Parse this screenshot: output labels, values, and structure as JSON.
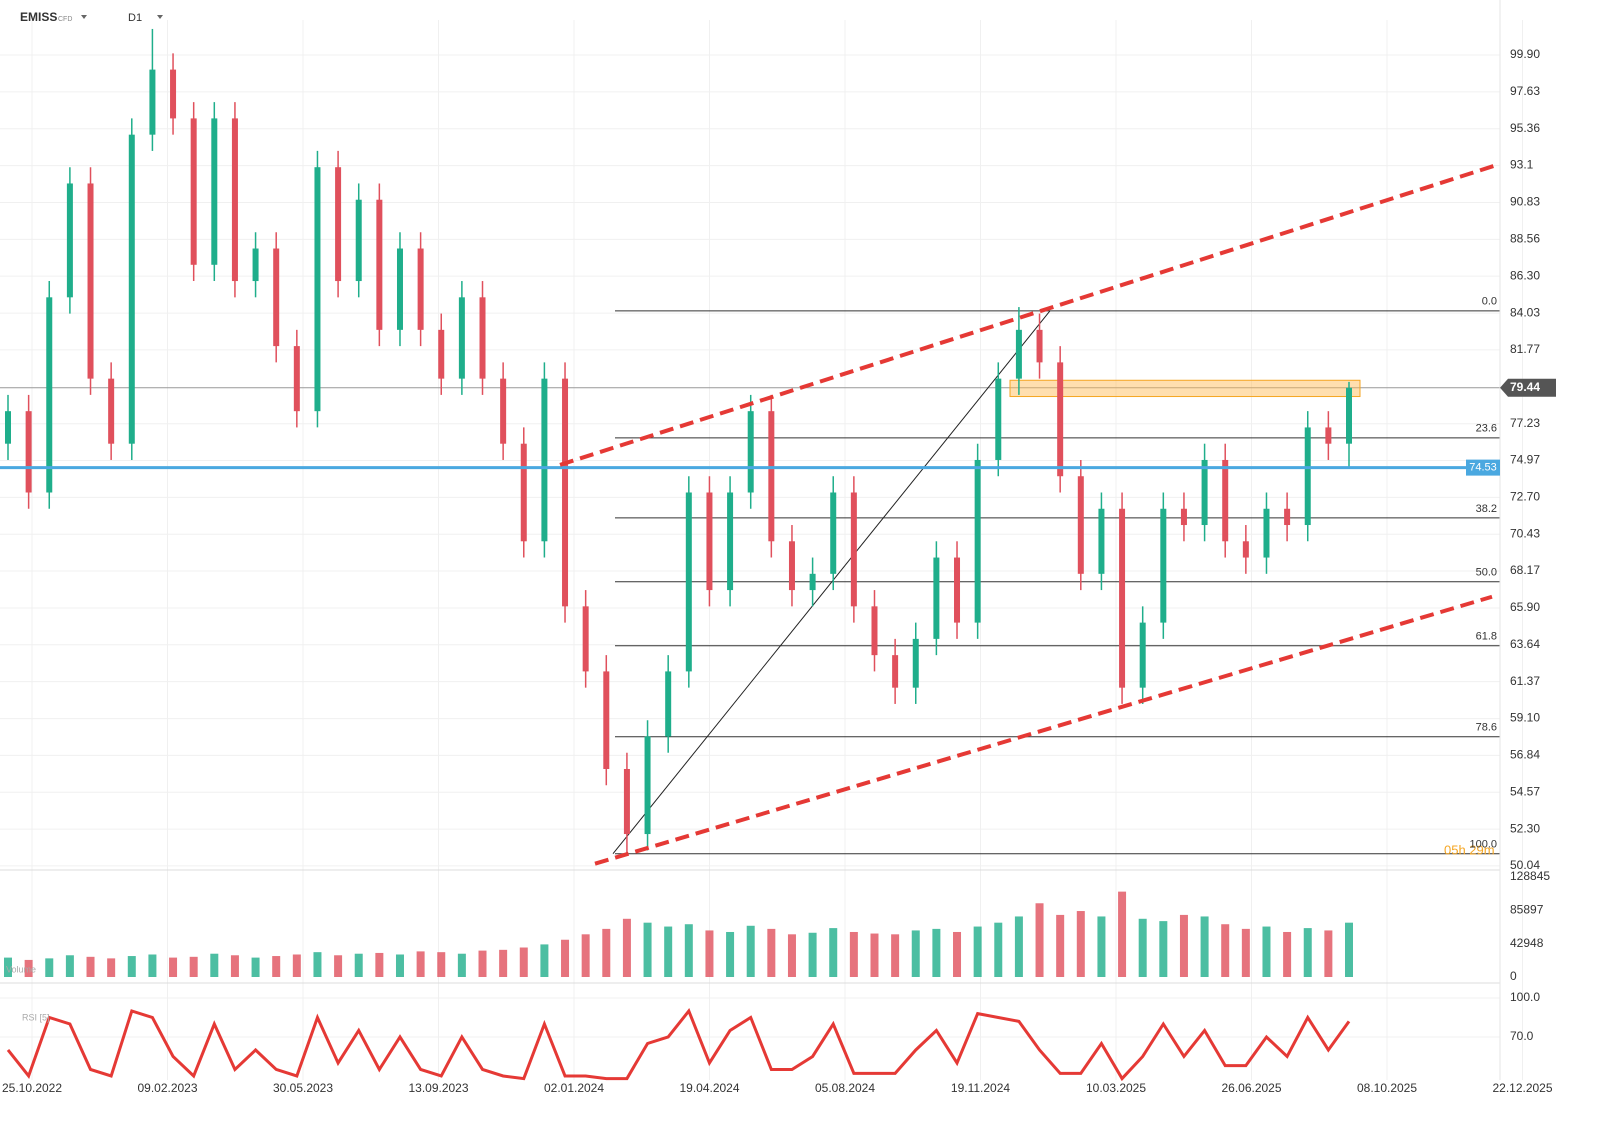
{
  "chart_data": {
    "type": "candlestick",
    "symbol": "EMISS",
    "instrument": "CFD",
    "interval": "D1",
    "timer": "05h 29m",
    "dates": [
      "25.10.2022",
      "09.02.2023",
      "30.05.2023",
      "13.09.2023",
      "02.01.2024",
      "19.04.2024",
      "05.08.2024",
      "19.11.2024",
      "10.03.2025",
      "26.06.2025",
      "08.10.2025",
      "22.12.2025"
    ],
    "open": [
      76,
      78,
      73,
      85,
      92,
      80,
      76,
      95,
      99,
      96,
      87,
      96,
      86,
      88,
      82,
      78,
      93,
      86,
      91,
      83,
      88,
      83,
      80,
      85,
      80,
      76,
      70,
      80,
      66,
      62,
      56,
      52,
      58,
      62,
      73,
      67,
      73,
      78,
      70,
      67,
      68,
      73,
      66,
      63,
      61,
      64,
      69,
      65,
      75,
      80,
      83,
      81,
      74,
      68,
      72,
      61,
      65,
      72,
      71,
      75,
      70,
      69,
      72,
      71,
      77,
      76
    ],
    "high": [
      79,
      79,
      86,
      93,
      93,
      81,
      96,
      101.5,
      100,
      97,
      97,
      97,
      89,
      89,
      83,
      94,
      94,
      92,
      92,
      89,
      89,
      84,
      86,
      86,
      81,
      77,
      81,
      81,
      67,
      63,
      57,
      59,
      63,
      74,
      74,
      74,
      79,
      79,
      71,
      69,
      74,
      74,
      67,
      64,
      65,
      70,
      70,
      76,
      81,
      84.4,
      84,
      82,
      75,
      73,
      73,
      66,
      73,
      73,
      76,
      76,
      71,
      73,
      73,
      78,
      78,
      79.8
    ],
    "low": [
      75,
      72,
      72,
      84,
      79,
      75,
      75,
      94,
      95,
      86,
      86,
      85,
      85,
      81,
      77,
      77,
      85,
      85,
      82,
      82,
      82,
      79,
      79,
      79,
      75,
      69,
      69,
      65,
      61,
      55,
      50.8,
      51,
      57,
      61,
      66,
      66,
      72,
      69,
      66,
      66,
      67,
      65,
      62,
      60,
      60,
      63,
      64,
      64,
      74,
      79,
      80,
      73,
      67,
      67,
      60,
      60,
      64,
      70,
      70,
      69,
      68,
      68,
      70,
      70,
      75,
      74.5
    ],
    "close": [
      78,
      73,
      85,
      92,
      80,
      76,
      95,
      99,
      96,
      87,
      96,
      86,
      88,
      82,
      78,
      93,
      86,
      91,
      83,
      88,
      83,
      80,
      85,
      80,
      76,
      70,
      80,
      66,
      62,
      56,
      52,
      58,
      62,
      73,
      67,
      73,
      78,
      70,
      67,
      68,
      73,
      66,
      63,
      61,
      64,
      69,
      65,
      75,
      80,
      83,
      81,
      74,
      68,
      72,
      61,
      65,
      72,
      71,
      75,
      70,
      69,
      72,
      71,
      77,
      76,
      79.44
    ],
    "up_color": "#1fae8b",
    "down_color": "#e0505c",
    "ylim": [
      49.79,
      102.05
    ],
    "yticks": [
      {
        "value": 99.9,
        "label": "99.90"
      },
      97.63,
      95.36,
      93.1,
      90.83,
      88.56,
      {
        "value": 86.3,
        "label": "86.30"
      },
      84.03,
      81.77,
      77.23,
      74.97,
      {
        "value": 72.7,
        "label": "72.70"
      },
      70.43,
      68.17,
      {
        "value": 65.9,
        "label": "65.90"
      },
      63.64,
      61.37,
      {
        "value": 59.1,
        "label": "59.10"
      },
      56.84,
      54.57,
      {
        "value": 52.3,
        "label": "52.30"
      },
      50.04
    ],
    "current_price": 79.44,
    "support_level": 74.53,
    "zone": [
      78.9,
      79.9
    ],
    "fib_levels": [
      {
        "ratio": "0.0",
        "price": 84.17
      },
      {
        "ratio": "23.6",
        "price": 76.36
      },
      {
        "ratio": "38.2",
        "price": 71.44
      },
      {
        "ratio": "50.0",
        "price": 67.51
      },
      {
        "ratio": "61.8",
        "price": 63.58
      },
      {
        "ratio": "78.6",
        "price": 57.98
      },
      {
        "ratio": "100.0",
        "price": 50.79
      }
    ],
    "channel_upper": [
      74.7,
      93.14
    ],
    "channel_lower": [
      50.18,
      66.59
    ],
    "fib_swing": [
      50.79,
      84.17
    ],
    "volume": {
      "name": "Volume",
      "values": [
        25000,
        22000,
        24000,
        28000,
        26000,
        24000,
        27000,
        29000,
        25000,
        26000,
        30000,
        28000,
        25000,
        27000,
        29000,
        32000,
        28000,
        30000,
        31000,
        29000,
        33000,
        32000,
        30000,
        34000,
        35000,
        38000,
        42000,
        48000,
        55000,
        62000,
        75000,
        70000,
        65000,
        68000,
        60000,
        58000,
        66000,
        62000,
        55000,
        57000,
        63000,
        58000,
        56000,
        55000,
        60000,
        62000,
        58000,
        65000,
        70000,
        78000,
        95000,
        80000,
        85000,
        78000,
        110000,
        75000,
        72000,
        80000,
        78000,
        68000,
        62000,
        65000,
        58000,
        63000,
        60000,
        70000
      ],
      "ylim": [
        -6442,
        131422
      ],
      "yticks": [
        128845,
        85897,
        42948,
        0
      ]
    },
    "rsi": {
      "name": "RSI [5]",
      "color": "#e53935",
      "values": [
        60,
        40,
        85,
        80,
        45,
        40,
        90,
        85,
        55,
        40,
        80,
        45,
        60,
        45,
        40,
        85,
        50,
        75,
        45,
        70,
        45,
        40,
        70,
        45,
        40,
        38,
        80,
        40,
        40,
        38,
        38,
        65,
        70,
        90,
        50,
        75,
        85,
        45,
        45,
        55,
        80,
        42,
        42,
        42,
        60,
        75,
        50,
        88,
        85,
        82,
        60,
        42,
        42,
        65,
        38,
        55,
        80,
        55,
        75,
        48,
        48,
        70,
        55,
        85,
        60,
        82
      ],
      "ylim": [
        36.9,
        110
      ],
      "yticks": [
        {
          "value": 100,
          "label": "100.0"
        },
        {
          "value": 70,
          "label": "70.0"
        }
      ]
    }
  }
}
